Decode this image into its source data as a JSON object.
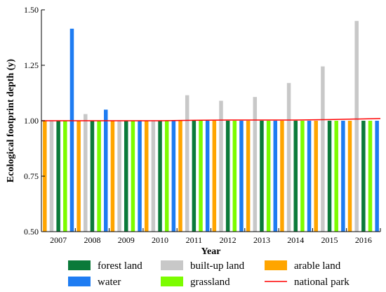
{
  "chart_data": {
    "type": "bar",
    "title": "",
    "xlabel": "Year",
    "ylabel": "Ecological footprint depth (y)",
    "ylim": [
      0.5,
      1.5
    ],
    "yticks": [
      "0.50",
      "0.75",
      "1.00",
      "1.25",
      "1.50"
    ],
    "categories": [
      "2007",
      "2008",
      "2009",
      "2010",
      "2011",
      "2012",
      "2013",
      "2014",
      "2015",
      "2016"
    ],
    "grid": false,
    "legend_position": "bottom",
    "series": [
      {
        "name": "arable land",
        "color": "#FFA500",
        "values": [
          1.0,
          1.0,
          1.0,
          1.0,
          1.0,
          1.0,
          1.0,
          1.0,
          1.0,
          1.0
        ]
      },
      {
        "name": "built-up land",
        "color": "#C8C8C8",
        "values": [
          1.0,
          1.03,
          1.0,
          1.0,
          1.115,
          1.09,
          1.107,
          1.17,
          1.245,
          1.45
        ]
      },
      {
        "name": "forest land",
        "color": "#0B7A3A",
        "values": [
          1.0,
          1.0,
          1.0,
          1.0,
          1.0,
          1.0,
          1.0,
          1.0,
          1.0,
          1.0
        ]
      },
      {
        "name": "grassland",
        "color": "#7CFC00",
        "values": [
          1.0,
          1.0,
          1.0,
          1.0,
          1.0,
          1.0,
          1.0,
          1.0,
          1.0,
          1.0
        ]
      },
      {
        "name": "water",
        "color": "#1E7CF2",
        "values": [
          1.415,
          1.05,
          1.0,
          1.0,
          1.0,
          1.0,
          1.0,
          1.0,
          1.0,
          1.0
        ]
      }
    ],
    "line": {
      "name": "national park",
      "color": "#FF0000",
      "values": [
        1.0,
        1.0,
        1.0,
        1.0,
        1.002,
        1.003,
        1.003,
        1.003,
        1.005,
        1.01
      ]
    }
  },
  "legend_order": [
    "forest land",
    "built-up land",
    "arable land",
    "water",
    "grassland",
    "national park"
  ]
}
